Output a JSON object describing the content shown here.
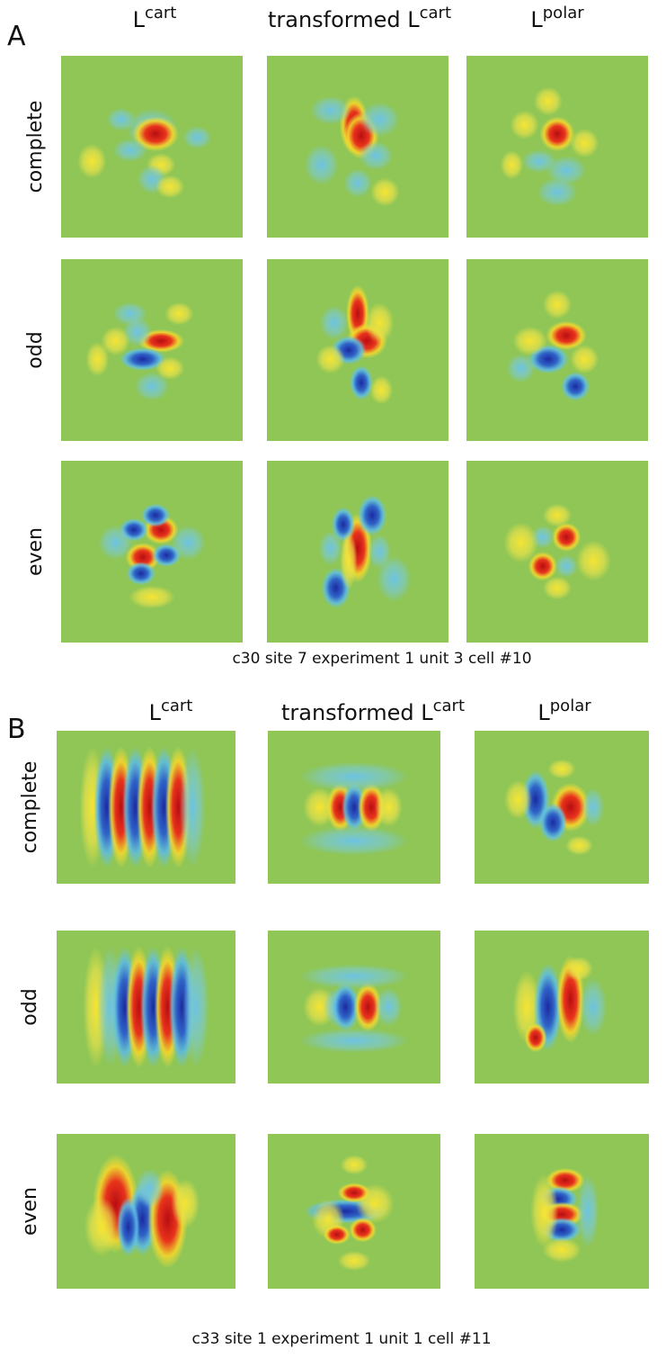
{
  "panels": [
    {
      "label": "A",
      "columns": [
        {
          "base": "L",
          "superscript": "cart"
        },
        {
          "base": "transformed L",
          "superscript": "cart"
        },
        {
          "base": "L",
          "superscript": "polar"
        }
      ],
      "rows": [
        "complete",
        "odd",
        "even"
      ],
      "caption": "c30 site 7 experiment 1 unit 3 cell #10"
    },
    {
      "label": "B",
      "columns": [
        {
          "base": "L",
          "superscript": "cart"
        },
        {
          "base": "transformed L",
          "superscript": "cart"
        },
        {
          "base": "L",
          "superscript": "polar"
        }
      ],
      "rows": [
        "complete",
        "odd",
        "even"
      ],
      "caption": "c33 site 1 experiment 1 unit 1 cell #11"
    }
  ]
}
